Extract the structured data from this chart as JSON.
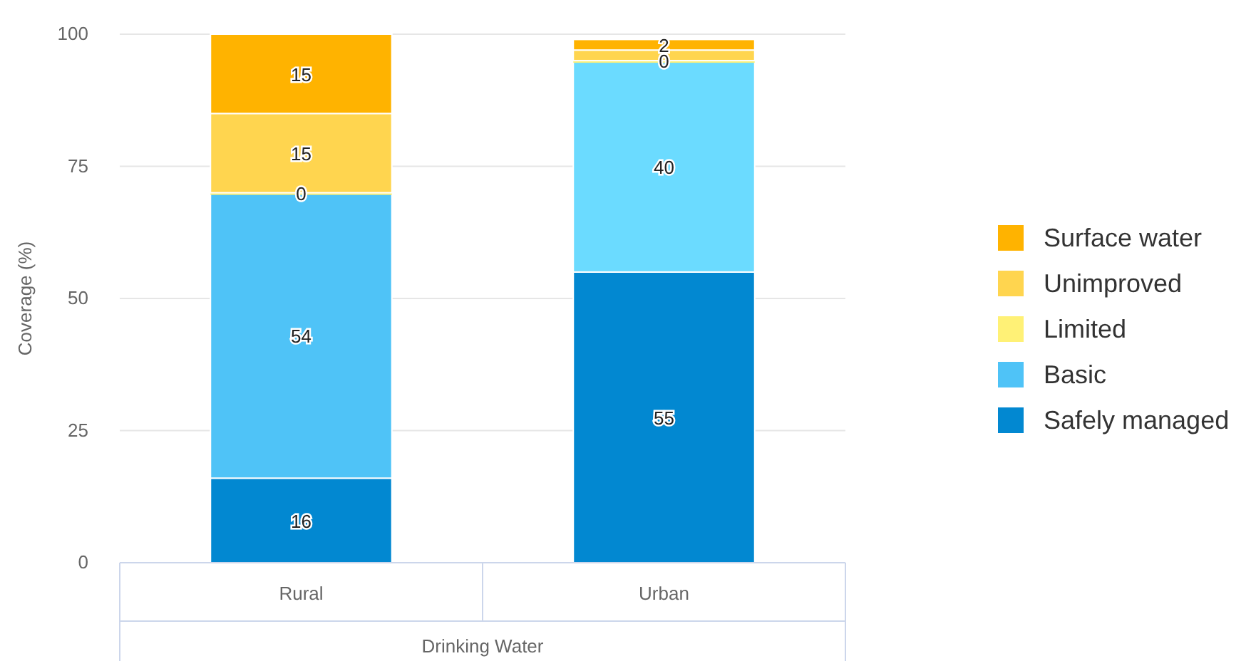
{
  "chart_data": {
    "type": "bar",
    "stacked": true,
    "categories": [
      "Rural",
      "Urban"
    ],
    "xlabel": "Drinking Water",
    "ylabel": "Coverage (%)",
    "ylim": [
      0,
      100
    ],
    "yticks": [
      0,
      25,
      50,
      75,
      100
    ],
    "grid": "y",
    "legend": "right",
    "series": [
      {
        "name": "Safely managed",
        "color": "#0288d1",
        "values": [
          16,
          55
        ],
        "value_labels": [
          "16",
          "55"
        ]
      },
      {
        "name": "Basic",
        "color": "#4fc3f7",
        "colors": [
          "#4fc3f7",
          "#6bdbff"
        ],
        "values": [
          54,
          40
        ],
        "value_labels": [
          "54",
          "40"
        ]
      },
      {
        "name": "Limited",
        "color": "#fff176",
        "values": [
          0,
          0
        ],
        "value_labels": [
          "0",
          "0"
        ]
      },
      {
        "name": "Unimproved",
        "color": "#ffd54f",
        "values": [
          15,
          2
        ],
        "value_labels": [
          "15",
          null
        ]
      },
      {
        "name": "Surface water",
        "color": "#ffb300",
        "values": [
          15,
          2
        ],
        "value_labels": [
          "15",
          "2"
        ]
      }
    ]
  }
}
